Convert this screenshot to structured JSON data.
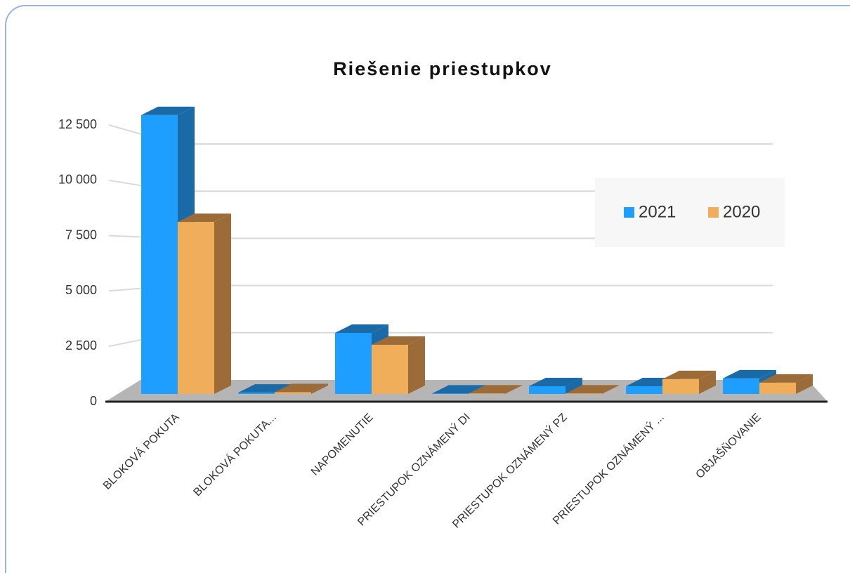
{
  "chart_data": {
    "type": "bar3d",
    "title": "Riešenie priestupkov",
    "categories": [
      "BLOKOVÁ POKUTA",
      "BLOKOVÁ POKUTA...",
      "NAPOMENUTIE",
      "PRIESTUPOK OZNÁMENÝ DI",
      "PRIESTUPOK OZNÁMENÝ PZ",
      "PRIESTUPOK OZNÁMENÝ ...",
      "OBJAŠŇOVANIE"
    ],
    "series": [
      {
        "name": "2021",
        "color": "#1e9fff",
        "side": "#1a6aa8",
        "values": [
          12600,
          60,
          2760,
          20,
          350,
          350,
          700
        ]
      },
      {
        "name": "2020",
        "color": "#f0ad5a",
        "side": "#9c6c38",
        "values": [
          7770,
          80,
          2220,
          20,
          20,
          670,
          510
        ]
      }
    ],
    "ylim": [
      0,
      12500
    ],
    "yticks": [
      0,
      {
        "value": 2500,
        "label": "2 500"
      },
      {
        "value": 5000,
        "label": "5 000"
      },
      {
        "value": 7500,
        "label": "7 500"
      },
      {
        "value": 10000,
        "label": "10 000"
      },
      {
        "value": 12500,
        "label": "12 500"
      }
    ],
    "grid": true,
    "legend": "upper right"
  }
}
